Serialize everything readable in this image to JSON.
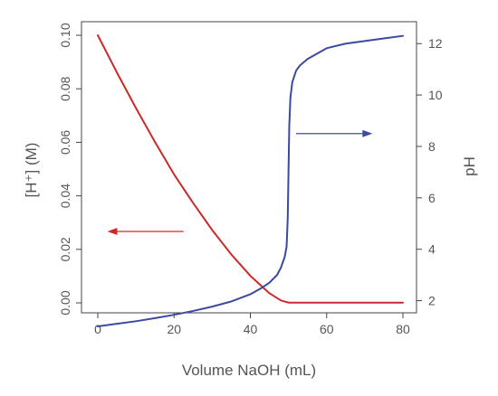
{
  "chart_data": {
    "type": "line",
    "title": "",
    "xlabel": "Volume NaOH (mL)",
    "ylabel_left": "[H⁺] (M)",
    "ylabel_right": "pH",
    "xlim": [
      0,
      80
    ],
    "ylim_left": [
      0,
      0.1
    ],
    "ylim_right": [
      1,
      12.5
    ],
    "x_ticks": [
      "0",
      "20",
      "40",
      "60",
      "80"
    ],
    "y_left_ticks": [
      "0.00",
      "0.02",
      "0.04",
      "0.06",
      "0.08",
      "0.10"
    ],
    "y_right_ticks": [
      "2",
      "4",
      "6",
      "8",
      "10",
      "12"
    ],
    "grid": false,
    "series": [
      {
        "axis": "left",
        "color": "#cc2a2a",
        "x": [
          0,
          5,
          10,
          15,
          20,
          25,
          30,
          35,
          40,
          45,
          48,
          50,
          55,
          60,
          65,
          70,
          75,
          80
        ],
        "y": [
          0.1,
          0.0861,
          0.0728,
          0.0601,
          0.048,
          0.0373,
          0.0272,
          0.0181,
          0.0101,
          0.0036,
          0.0009,
          0.0001,
          0.0001,
          0.0001,
          0.0001,
          0.0001,
          0.0001,
          0.0001
        ]
      },
      {
        "axis": "right",
        "color": "#3b4a9e",
        "x": [
          0,
          5,
          10,
          15,
          20,
          25,
          30,
          35,
          40,
          43,
          45,
          47,
          48,
          49,
          49.5,
          49.8,
          50,
          50.2,
          50.5,
          51,
          52,
          53,
          55,
          60,
          65,
          70,
          75,
          80
        ],
        "y": [
          1.0,
          1.1,
          1.2,
          1.32,
          1.45,
          1.6,
          1.77,
          1.97,
          2.25,
          2.5,
          2.7,
          3.0,
          3.28,
          3.7,
          4.1,
          5.2,
          7.0,
          8.8,
          9.9,
          10.5,
          10.95,
          11.15,
          11.4,
          11.82,
          12.0,
          12.1,
          12.2,
          12.3
        ]
      }
    ],
    "annotations": [
      {
        "type": "arrow",
        "color": "#cc2a2a",
        "from": [
          22.5,
          0.0267
        ],
        "to": [
          2.5,
          0.0267
        ],
        "axis": "left"
      },
      {
        "type": "arrow",
        "color": "#3b4a9e",
        "from": [
          52,
          8.5
        ],
        "to": [
          72,
          8.5
        ],
        "axis": "right"
      }
    ]
  }
}
